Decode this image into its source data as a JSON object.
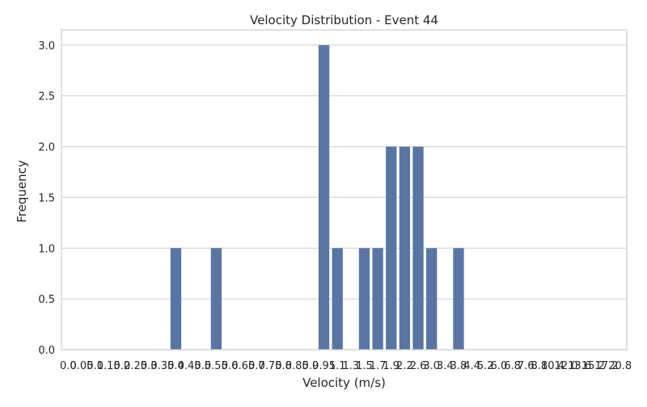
{
  "chart_data": {
    "type": "bar",
    "title": "Velocity Distribution - Event 44",
    "xlabel": "Velocity (m/s)",
    "ylabel": "Frequency",
    "categories": [
      "0.0",
      "0.05",
      "0.1",
      "0.15",
      "0.2",
      "0.25",
      "0.3",
      "0.35",
      "0.4",
      "0.45",
      "0.5",
      "0.55",
      "0.6",
      "0.65",
      "0.7",
      "0.75",
      "0.8",
      "0.85",
      "0.9",
      "0.95",
      "1.1",
      "1.3",
      "1.5",
      "1.7",
      "1.9",
      "2.2",
      "2.6",
      "3.0",
      "3.4",
      "3.8",
      "4.4",
      "5.2",
      "6.0",
      "6.8",
      "7.6",
      "8.8",
      "10.4",
      "12.0",
      "13.6",
      "15.2",
      "17.2",
      "20.8"
    ],
    "values": [
      0,
      0,
      0,
      0,
      0,
      0,
      0,
      0,
      1,
      0,
      0,
      1,
      0,
      0,
      0,
      0,
      0,
      0,
      0,
      3,
      1,
      0,
      1,
      1,
      2,
      2,
      2,
      1,
      0,
      1,
      0,
      0,
      0,
      0,
      0,
      0,
      0,
      0,
      0,
      0,
      0,
      0
    ],
    "ylim": [
      0,
      3.15
    ],
    "yticks": [
      "0.0",
      "0.5",
      "1.0",
      "1.5",
      "2.0",
      "2.5",
      "3.0"
    ],
    "grid": "horizontal",
    "bar_color": "#5975a4",
    "grid_color": "#cccccc",
    "axis_color": "#cccccc"
  }
}
